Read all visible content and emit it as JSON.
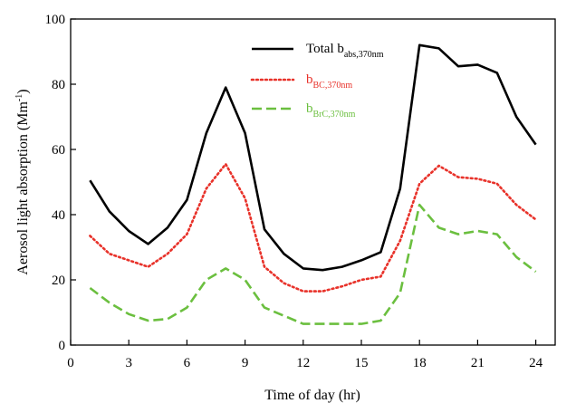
{
  "chart_data": {
    "type": "line",
    "xlabel": "Time of day (hr)",
    "ylabel": "Aerosol light absorption (Mm",
    "ylabel_sup": "-1",
    "ylabel_close": ")",
    "xlim": [
      0,
      25
    ],
    "ylim": [
      0,
      100
    ],
    "xticks": [
      "0",
      "3",
      "6",
      "9",
      "12",
      "15",
      "18",
      "21",
      "24"
    ],
    "yticks": [
      "0",
      "20",
      "40",
      "60",
      "80",
      "100"
    ],
    "grid": false,
    "legend_position": "top-center",
    "x": [
      1,
      2,
      3,
      4,
      5,
      6,
      7,
      8,
      9,
      10,
      11,
      12,
      13,
      14,
      15,
      16,
      17,
      18,
      19,
      20,
      21,
      22,
      23,
      24
    ],
    "series": [
      {
        "name": "Total b",
        "name_sub": "abs,370nm",
        "color": "#000000",
        "style": "solid",
        "values": [
          50.5,
          41,
          35,
          31,
          36,
          44.5,
          65,
          79,
          65,
          35.5,
          28,
          23.5,
          23,
          24,
          26,
          28.5,
          48,
          92,
          91,
          85.5,
          86,
          83.5,
          70,
          61.5
        ]
      },
      {
        "name": "b",
        "name_sub": "BC,370nm",
        "color": "#e8322a",
        "style": "dotted",
        "values": [
          33.5,
          28,
          26,
          24,
          28,
          34,
          48,
          55.5,
          45,
          24,
          19,
          16.5,
          16.5,
          18,
          20,
          21,
          32,
          49.5,
          55,
          51.5,
          51,
          49.5,
          43,
          38.5
        ]
      },
      {
        "name": "b",
        "name_sub": "BrC,370nm",
        "color": "#6bbf3f",
        "style": "dashed",
        "values": [
          17.5,
          13,
          9.5,
          7.5,
          8,
          11.5,
          20,
          23.5,
          20,
          11.5,
          9,
          6.5,
          6.5,
          6.5,
          6.5,
          7.5,
          16,
          43,
          36,
          34,
          35,
          34,
          27,
          22.5
        ]
      }
    ]
  }
}
